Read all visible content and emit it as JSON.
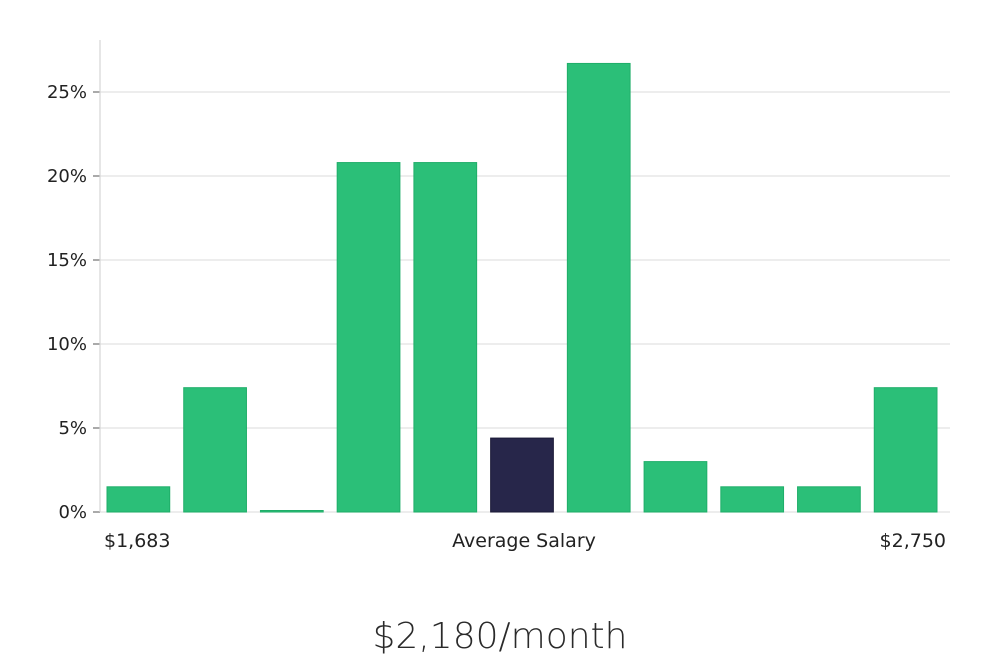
{
  "chart_data": {
    "type": "bar",
    "values": [
      1.5,
      7.4,
      0.05,
      20.8,
      20.8,
      4.4,
      26.7,
      3.0,
      1.5,
      1.5,
      7.4
    ],
    "highlight_index": 5,
    "ylim": [
      0,
      28
    ],
    "yticks": [
      0,
      5,
      10,
      15,
      20,
      25
    ],
    "ytick_labels": [
      "0%",
      "5%",
      "10%",
      "15%",
      "20%",
      "25%"
    ],
    "x_min_label": "$1,683",
    "x_center_label": "Average Salary",
    "x_max_label": "$2,750",
    "grid": true,
    "colors": {
      "bar": "#2bbf78",
      "bar_stroke": "#1fae69",
      "highlight": "#27264a",
      "grid": "#e2e2e2",
      "axis": "#d6d6d6"
    }
  },
  "summary": {
    "salary": "$2,180/month"
  }
}
